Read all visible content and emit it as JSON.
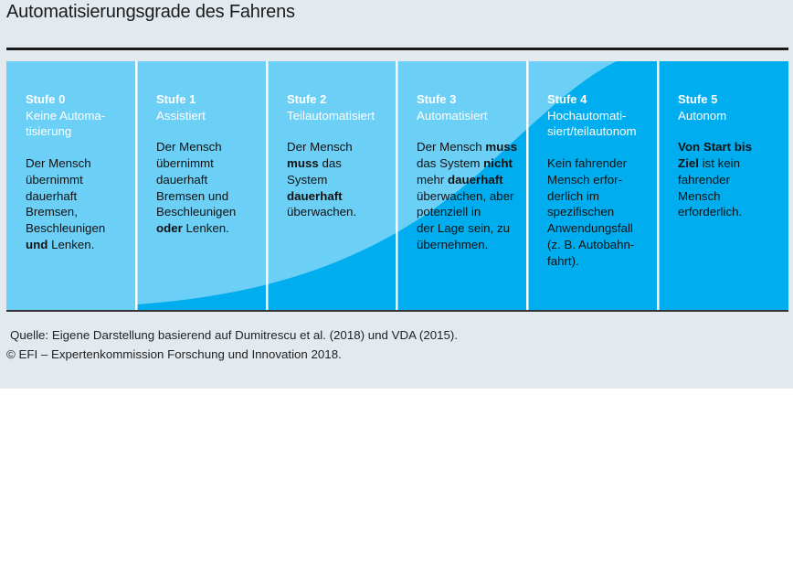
{
  "title": "Automatisierungsgrade des Fahrens",
  "colors": {
    "light_blue": "#6ccff6",
    "dark_blue": "#00aeef",
    "divider": "#ffffff",
    "panel": "#e2eaf0"
  },
  "stages": [
    {
      "level": "Stufe 0",
      "name": "Keine Automa-\ntisierung",
      "desc_parts": [
        {
          "t": "Der Mensch\nübernimmt\ndauerhaft\nBremsen,\nBeschleunigen\n",
          "b": false
        },
        {
          "t": "und",
          "b": true
        },
        {
          "t": " Lenken.",
          "b": false
        }
      ]
    },
    {
      "level": "Stufe 1",
      "name": "Assistiert",
      "desc_parts": [
        {
          "t": "Der Mensch\nübernimmt\ndauerhaft\nBremsen und\nBeschleunigen\n",
          "b": false
        },
        {
          "t": "oder",
          "b": true
        },
        {
          "t": " Lenken.",
          "b": false
        }
      ]
    },
    {
      "level": "Stufe 2",
      "name": "Teilautomatisiert",
      "desc_parts": [
        {
          "t": "Der Mensch\n",
          "b": false
        },
        {
          "t": "muss",
          "b": true
        },
        {
          "t": " das\nSystem\n",
          "b": false
        },
        {
          "t": "dauerhaft",
          "b": true
        },
        {
          "t": "\nüberwachen.",
          "b": false
        }
      ]
    },
    {
      "level": "Stufe 3",
      "name": "Automatisiert",
      "desc_parts": [
        {
          "t": "Der Mensch ",
          "b": false
        },
        {
          "t": "muss",
          "b": true
        },
        {
          "t": "\ndas System ",
          "b": false
        },
        {
          "t": "nicht",
          "b": true
        },
        {
          "t": "\nmehr ",
          "b": false
        },
        {
          "t": "dauerhaft",
          "b": true
        },
        {
          "t": "\nüberwachen, aber\npotenziell in\nder Lage sein, zu\nübernehmen.",
          "b": false
        }
      ]
    },
    {
      "level": "Stufe 4",
      "name": "Hochautomati-\nsiert/teilautonom",
      "desc_parts": [
        {
          "t": "Kein fahrender\nMensch erfor-\nderlich im\nspezifischen\nAnwendungsfall\n(z. B. Autobahn-\nfahrt).",
          "b": false
        }
      ]
    },
    {
      "level": "Stufe 5",
      "name": "Autonom",
      "desc_parts": [
        {
          "t": "Von Start bis\nZiel",
          "b": true
        },
        {
          "t": " ist kein\nfahrender\nMensch\nerforderlich.",
          "b": false
        }
      ]
    }
  ],
  "source": "Quelle: Eigene Darstellung basierend auf Dumitrescu et al. (2018) und VDA (2015).",
  "copyright": "© EFI – Expertenkommission Forschung und Innovation 2018."
}
